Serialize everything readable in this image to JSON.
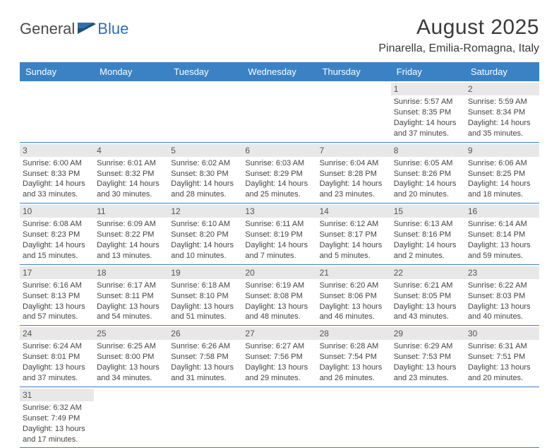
{
  "logo": {
    "left": "General",
    "right": "Blue"
  },
  "title": "August 2025",
  "location": "Pinarella, Emilia-Romagna, Italy",
  "colors": {
    "header_bg": "#3b82c4",
    "header_text": "#ffffff",
    "daynum_bg": "#e8e8e8",
    "row_border": "#3b82c4",
    "text": "#444444",
    "logo_gray": "#4a4a4a",
    "logo_blue": "#2f6fb0",
    "page_bg": "#ffffff"
  },
  "weekdays": [
    "Sunday",
    "Monday",
    "Tuesday",
    "Wednesday",
    "Thursday",
    "Friday",
    "Saturday"
  ],
  "weeks": [
    [
      {
        "empty": true
      },
      {
        "empty": true
      },
      {
        "empty": true
      },
      {
        "empty": true
      },
      {
        "empty": true
      },
      {
        "day": "1",
        "sunrise": "Sunrise: 5:57 AM",
        "sunset": "Sunset: 8:35 PM",
        "daylight": "Daylight: 14 hours and 37 minutes."
      },
      {
        "day": "2",
        "sunrise": "Sunrise: 5:59 AM",
        "sunset": "Sunset: 8:34 PM",
        "daylight": "Daylight: 14 hours and 35 minutes."
      }
    ],
    [
      {
        "day": "3",
        "sunrise": "Sunrise: 6:00 AM",
        "sunset": "Sunset: 8:33 PM",
        "daylight": "Daylight: 14 hours and 33 minutes."
      },
      {
        "day": "4",
        "sunrise": "Sunrise: 6:01 AM",
        "sunset": "Sunset: 8:32 PM",
        "daylight": "Daylight: 14 hours and 30 minutes."
      },
      {
        "day": "5",
        "sunrise": "Sunrise: 6:02 AM",
        "sunset": "Sunset: 8:30 PM",
        "daylight": "Daylight: 14 hours and 28 minutes."
      },
      {
        "day": "6",
        "sunrise": "Sunrise: 6:03 AM",
        "sunset": "Sunset: 8:29 PM",
        "daylight": "Daylight: 14 hours and 25 minutes."
      },
      {
        "day": "7",
        "sunrise": "Sunrise: 6:04 AM",
        "sunset": "Sunset: 8:28 PM",
        "daylight": "Daylight: 14 hours and 23 minutes."
      },
      {
        "day": "8",
        "sunrise": "Sunrise: 6:05 AM",
        "sunset": "Sunset: 8:26 PM",
        "daylight": "Daylight: 14 hours and 20 minutes."
      },
      {
        "day": "9",
        "sunrise": "Sunrise: 6:06 AM",
        "sunset": "Sunset: 8:25 PM",
        "daylight": "Daylight: 14 hours and 18 minutes."
      }
    ],
    [
      {
        "day": "10",
        "sunrise": "Sunrise: 6:08 AM",
        "sunset": "Sunset: 8:23 PM",
        "daylight": "Daylight: 14 hours and 15 minutes."
      },
      {
        "day": "11",
        "sunrise": "Sunrise: 6:09 AM",
        "sunset": "Sunset: 8:22 PM",
        "daylight": "Daylight: 14 hours and 13 minutes."
      },
      {
        "day": "12",
        "sunrise": "Sunrise: 6:10 AM",
        "sunset": "Sunset: 8:20 PM",
        "daylight": "Daylight: 14 hours and 10 minutes."
      },
      {
        "day": "13",
        "sunrise": "Sunrise: 6:11 AM",
        "sunset": "Sunset: 8:19 PM",
        "daylight": "Daylight: 14 hours and 7 minutes."
      },
      {
        "day": "14",
        "sunrise": "Sunrise: 6:12 AM",
        "sunset": "Sunset: 8:17 PM",
        "daylight": "Daylight: 14 hours and 5 minutes."
      },
      {
        "day": "15",
        "sunrise": "Sunrise: 6:13 AM",
        "sunset": "Sunset: 8:16 PM",
        "daylight": "Daylight: 14 hours and 2 minutes."
      },
      {
        "day": "16",
        "sunrise": "Sunrise: 6:14 AM",
        "sunset": "Sunset: 8:14 PM",
        "daylight": "Daylight: 13 hours and 59 minutes."
      }
    ],
    [
      {
        "day": "17",
        "sunrise": "Sunrise: 6:16 AM",
        "sunset": "Sunset: 8:13 PM",
        "daylight": "Daylight: 13 hours and 57 minutes."
      },
      {
        "day": "18",
        "sunrise": "Sunrise: 6:17 AM",
        "sunset": "Sunset: 8:11 PM",
        "daylight": "Daylight: 13 hours and 54 minutes."
      },
      {
        "day": "19",
        "sunrise": "Sunrise: 6:18 AM",
        "sunset": "Sunset: 8:10 PM",
        "daylight": "Daylight: 13 hours and 51 minutes."
      },
      {
        "day": "20",
        "sunrise": "Sunrise: 6:19 AM",
        "sunset": "Sunset: 8:08 PM",
        "daylight": "Daylight: 13 hours and 48 minutes."
      },
      {
        "day": "21",
        "sunrise": "Sunrise: 6:20 AM",
        "sunset": "Sunset: 8:06 PM",
        "daylight": "Daylight: 13 hours and 46 minutes."
      },
      {
        "day": "22",
        "sunrise": "Sunrise: 6:21 AM",
        "sunset": "Sunset: 8:05 PM",
        "daylight": "Daylight: 13 hours and 43 minutes."
      },
      {
        "day": "23",
        "sunrise": "Sunrise: 6:22 AM",
        "sunset": "Sunset: 8:03 PM",
        "daylight": "Daylight: 13 hours and 40 minutes."
      }
    ],
    [
      {
        "day": "24",
        "sunrise": "Sunrise: 6:24 AM",
        "sunset": "Sunset: 8:01 PM",
        "daylight": "Daylight: 13 hours and 37 minutes."
      },
      {
        "day": "25",
        "sunrise": "Sunrise: 6:25 AM",
        "sunset": "Sunset: 8:00 PM",
        "daylight": "Daylight: 13 hours and 34 minutes."
      },
      {
        "day": "26",
        "sunrise": "Sunrise: 6:26 AM",
        "sunset": "Sunset: 7:58 PM",
        "daylight": "Daylight: 13 hours and 31 minutes."
      },
      {
        "day": "27",
        "sunrise": "Sunrise: 6:27 AM",
        "sunset": "Sunset: 7:56 PM",
        "daylight": "Daylight: 13 hours and 29 minutes."
      },
      {
        "day": "28",
        "sunrise": "Sunrise: 6:28 AM",
        "sunset": "Sunset: 7:54 PM",
        "daylight": "Daylight: 13 hours and 26 minutes."
      },
      {
        "day": "29",
        "sunrise": "Sunrise: 6:29 AM",
        "sunset": "Sunset: 7:53 PM",
        "daylight": "Daylight: 13 hours and 23 minutes."
      },
      {
        "day": "30",
        "sunrise": "Sunrise: 6:31 AM",
        "sunset": "Sunset: 7:51 PM",
        "daylight": "Daylight: 13 hours and 20 minutes."
      }
    ],
    [
      {
        "day": "31",
        "sunrise": "Sunrise: 6:32 AM",
        "sunset": "Sunset: 7:49 PM",
        "daylight": "Daylight: 13 hours and 17 minutes."
      },
      {
        "empty": true
      },
      {
        "empty": true
      },
      {
        "empty": true
      },
      {
        "empty": true
      },
      {
        "empty": true
      },
      {
        "empty": true
      }
    ]
  ]
}
